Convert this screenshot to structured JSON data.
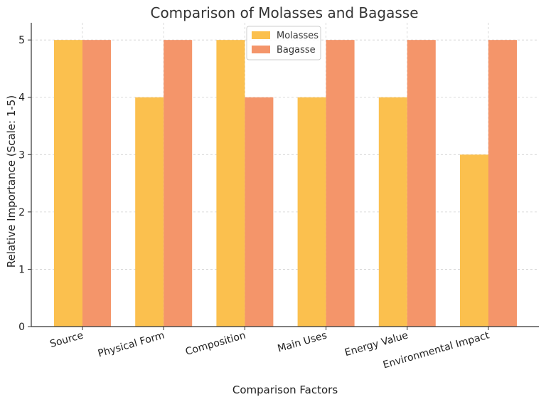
{
  "chart_data": {
    "type": "bar",
    "title": "Comparison of Molasses and Bagasse",
    "xlabel": "Comparison Factors",
    "ylabel": "Relative Importance (Scale: 1-5)",
    "categories": [
      "Source",
      "Physical Form",
      "Composition",
      "Main Uses",
      "Energy Value",
      "Environmental Impact"
    ],
    "series": [
      {
        "name": "Molasses",
        "values": [
          5,
          4,
          5,
          4,
          4,
          3
        ],
        "color": "#FBC04E"
      },
      {
        "name": "Bagasse",
        "values": [
          5,
          5,
          4,
          5,
          5,
          5
        ],
        "color": "#F4956A"
      }
    ],
    "ylim": [
      0,
      5.3
    ],
    "yticks": [
      0,
      1,
      2,
      3,
      4,
      5
    ],
    "grid": true,
    "legend_position": "top-center"
  }
}
